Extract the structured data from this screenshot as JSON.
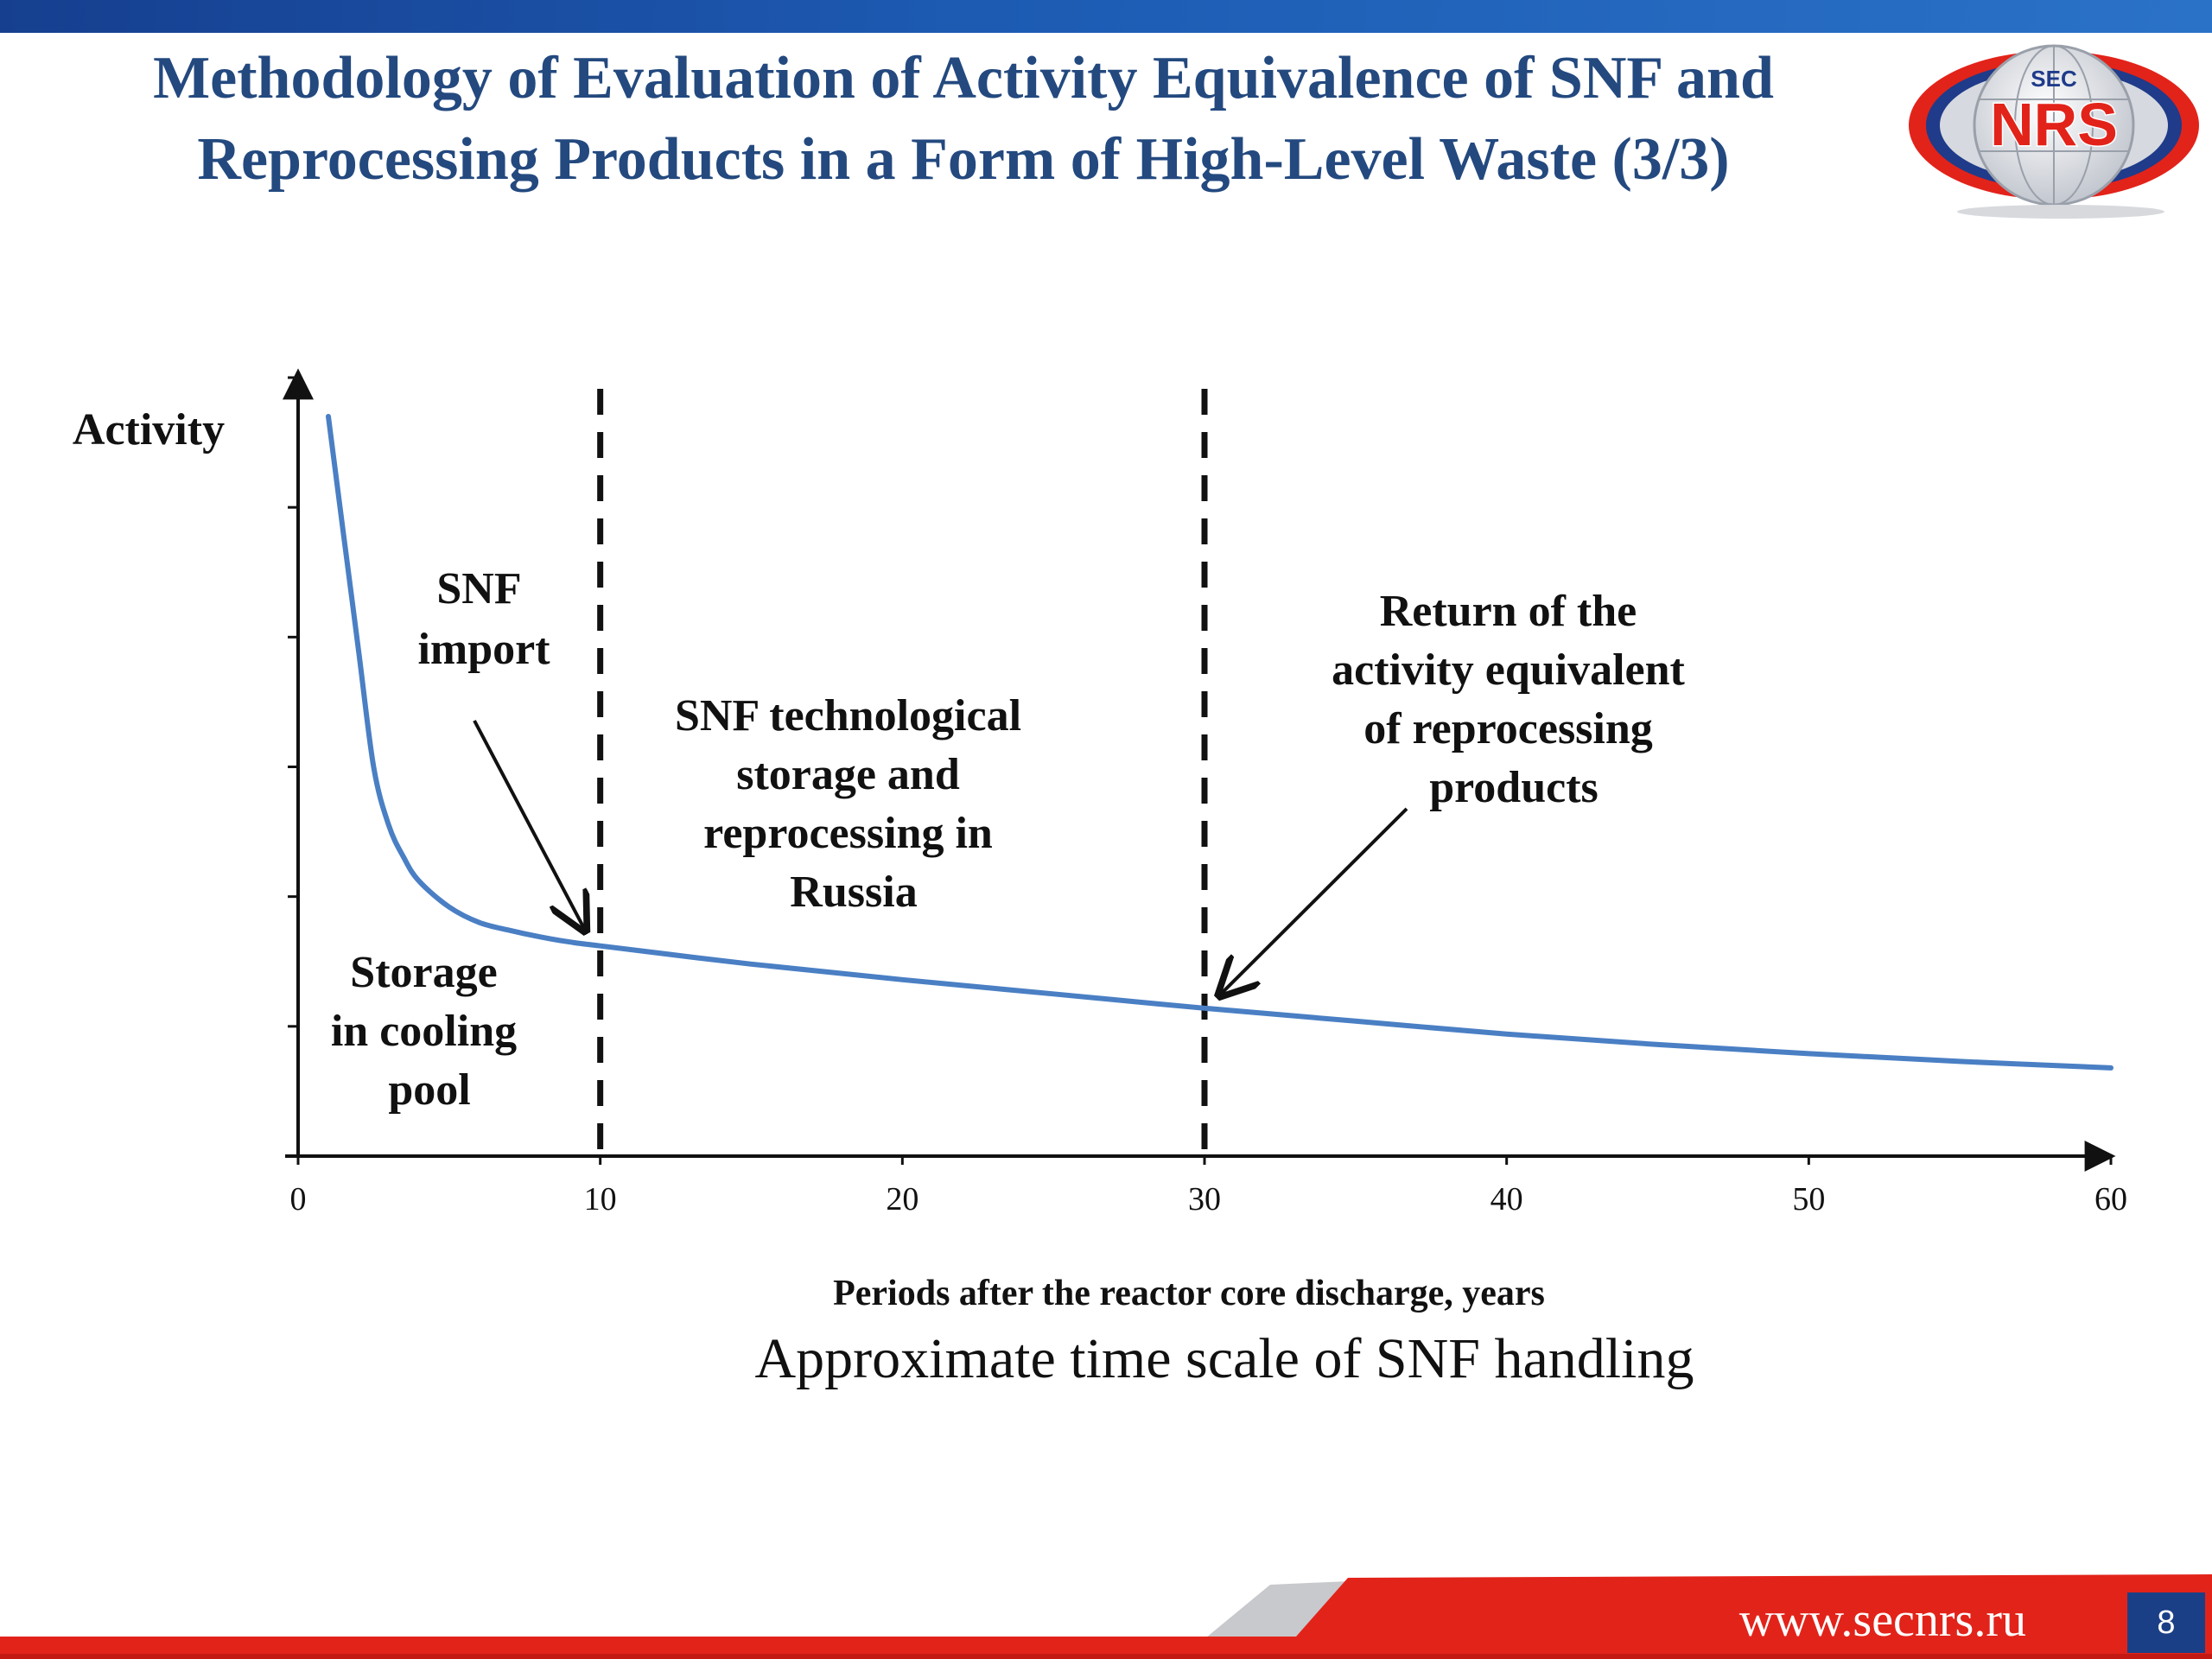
{
  "slide": {
    "title_line1": "Methodology of Evaluation of Activity Equivalence of SNF and",
    "title_line2": "Reprocessing Products in a Form of High-Level Waste (3/3)",
    "caption": "Approximate time scale of SNF handling",
    "footer_url": "www.secnrs.ru",
    "page_number": "8",
    "logo": {
      "top_text": "SEC",
      "main_text": "NRS",
      "colors": {
        "red": "#e2231a",
        "blue": "#1f3b8a",
        "silver": "#c9ccd3"
      }
    }
  },
  "colors": {
    "title": "#23497f",
    "curve": "#4a7fc4",
    "top_bar": "#1d5bb3",
    "footer_red": "#e2231a",
    "page_box": "#1b3f86"
  },
  "chart_data": {
    "type": "line",
    "title": "Approximate time scale of SNF handling",
    "xlabel": "Periods after the reactor core discharge, years",
    "ylabel": "Activity",
    "xlim": [
      0,
      60
    ],
    "ylim": [
      0,
      6
    ],
    "x_ticks": [
      "0",
      "10",
      "20",
      "30",
      "40",
      "50",
      "60"
    ],
    "y_ticks_count": 6,
    "y_tick_labels_shown": false,
    "grid": false,
    "series": [
      {
        "name": "Activity",
        "x": [
          1,
          1.5,
          2,
          2.5,
          3,
          3.5,
          4,
          5,
          6,
          7,
          8,
          9,
          10,
          15,
          20,
          25,
          30,
          35,
          40,
          45,
          50,
          55,
          60
        ],
        "y": [
          5.7,
          4.8,
          3.9,
          3.0,
          2.55,
          2.3,
          2.12,
          1.92,
          1.8,
          1.74,
          1.69,
          1.65,
          1.62,
          1.48,
          1.36,
          1.25,
          1.14,
          1.04,
          0.94,
          0.86,
          0.79,
          0.73,
          0.68
        ]
      }
    ],
    "vlines": [
      {
        "x": 10,
        "style": "dashed"
      },
      {
        "x": 30,
        "style": "dashed"
      }
    ],
    "annotations": [
      {
        "lines": [
          "SNF",
          "import"
        ],
        "arrow_to": {
          "x": 9.5,
          "y": 1.74
        }
      },
      {
        "lines": [
          "SNF technological",
          "storage and",
          "reprocessing in",
          "Russia"
        ]
      },
      {
        "lines": [
          "Return of the",
          "activity equivalent",
          "of reprocessing",
          "products"
        ],
        "arrow_to": {
          "x": 30.5,
          "y": 1.24
        }
      },
      {
        "lines": [
          "Storage",
          "in cooling",
          "pool"
        ]
      }
    ]
  }
}
